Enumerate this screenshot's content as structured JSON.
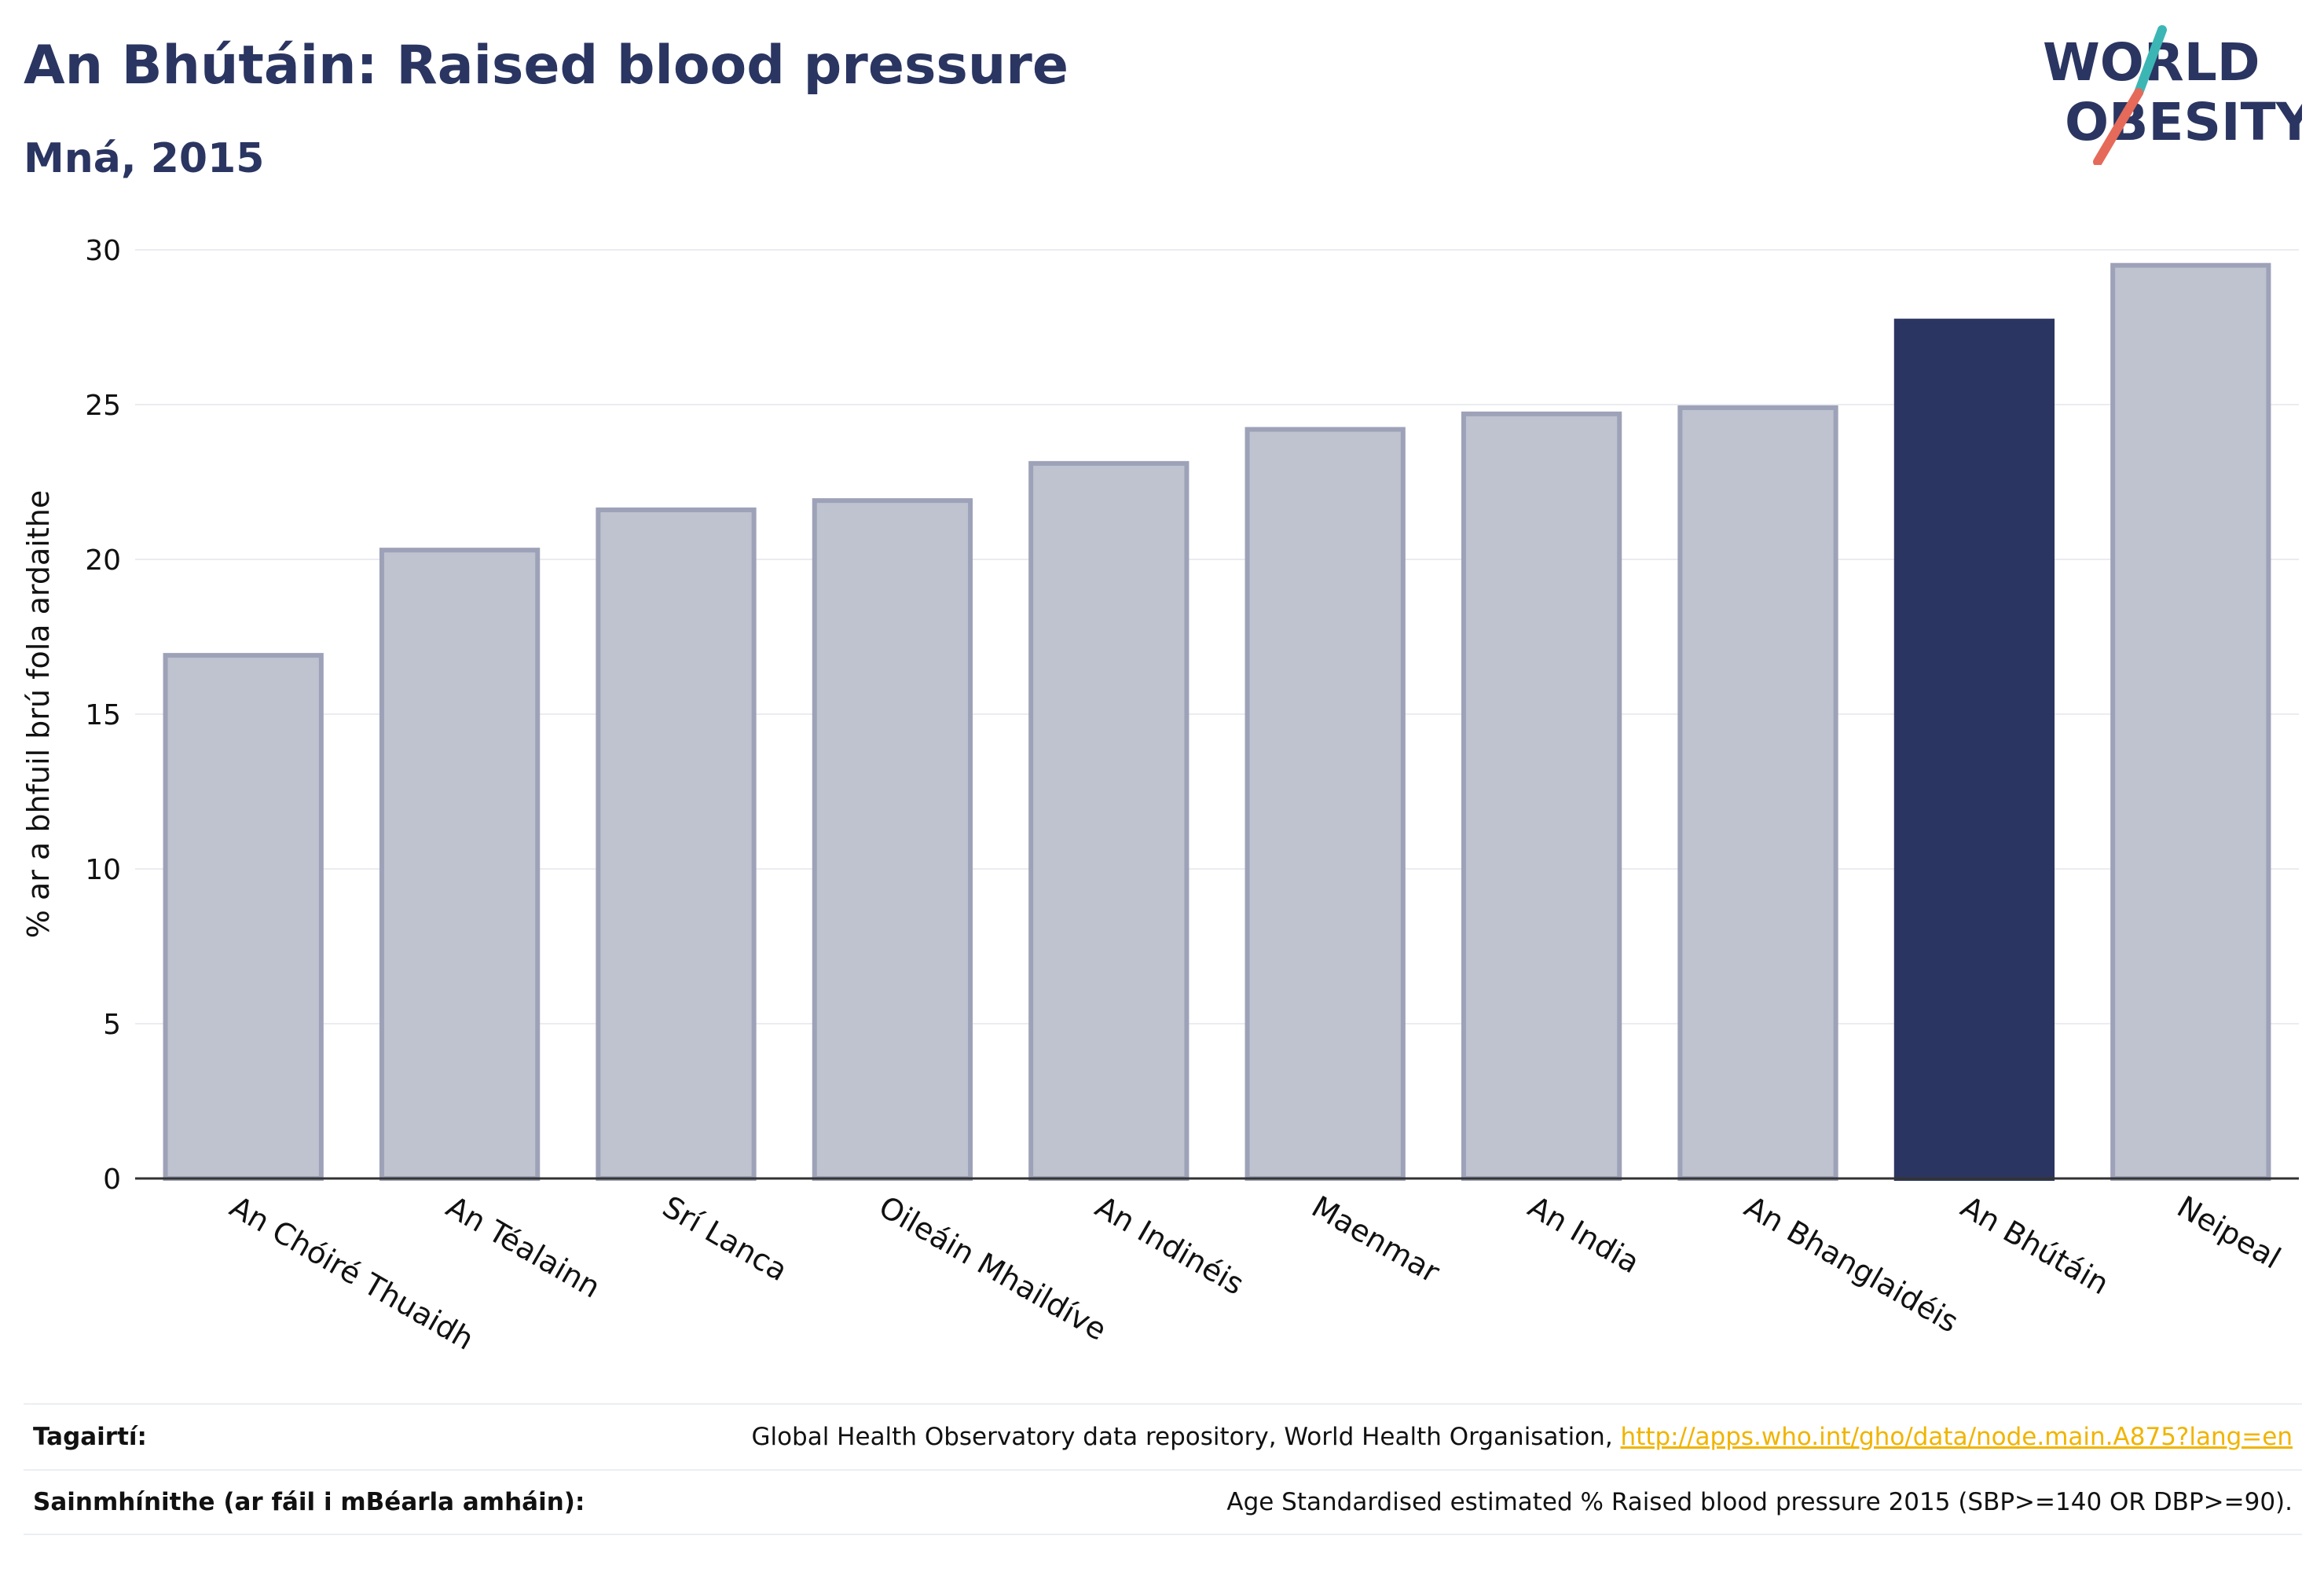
{
  "header": {
    "title": "An Bhútáin: Raised blood pressure",
    "subtitle": "Mná, 2015"
  },
  "logo": {
    "line1": "WORLD",
    "line2": "OBESITY"
  },
  "colors": {
    "highlight": "#2a3561",
    "other_fill": "#bfc2cf",
    "other_stroke": "#9da2b8",
    "grid": "#ebecf1",
    "axis": "#333333",
    "link": "#f0b400",
    "logo_teal": "#3cb6b4",
    "logo_coral": "#e56a5a"
  },
  "chart_data": {
    "type": "bar",
    "title": "An Bhútáin: Raised blood pressure",
    "subtitle": "Mná, 2015",
    "ylabel": "% ar a bhfuil brú fola ardaithe",
    "xlabel": "",
    "ylim": [
      0,
      30
    ],
    "yticks": [
      0,
      5,
      10,
      15,
      20,
      25,
      30
    ],
    "grid": true,
    "categories": [
      "An Chóiré Thuaidh",
      "An Téalainn",
      "Srí Lanca",
      "Oileáin Mhaildíve",
      "An Indinéis",
      "Maenmar",
      "An India",
      "An Bhanglaidéis",
      "An Bhútáin",
      "Neipeal"
    ],
    "values": [
      16.9,
      20.3,
      21.6,
      21.9,
      23.1,
      24.2,
      24.7,
      24.9,
      27.7,
      29.5
    ],
    "highlight": "An Bhútáin"
  },
  "footer": {
    "references_label": "Tagairtí:",
    "references_text": "Global Health Observatory data repository, World Health Organisation, ",
    "references_link": "http://apps.who.int/gho/data/node.main.A875?lang=en",
    "definitions_label": "Sainmhínithe (ar fáil i mBéarla amháin):",
    "definitions_text": "Age Standardised estimated % Raised blood pressure 2015 (SBP>=140 OR DBP>=90)."
  }
}
